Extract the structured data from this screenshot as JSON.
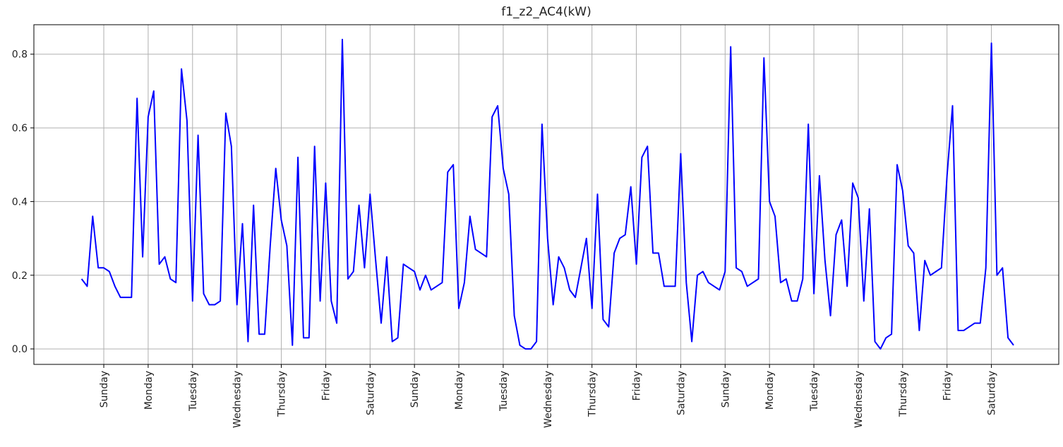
{
  "chart_data": {
    "type": "line",
    "title": "f1_z2_AC4(kW)",
    "categories": [
      null,
      null,
      null,
      null,
      "Sunday",
      null,
      null,
      null,
      null,
      null,
      null,
      null,
      "Monday",
      null,
      null,
      null,
      null,
      null,
      null,
      null,
      "Tuesday",
      null,
      null,
      null,
      null,
      null,
      null,
      null,
      "Wednesday",
      null,
      null,
      null,
      null,
      null,
      null,
      null,
      "Thursday",
      null,
      null,
      null,
      null,
      null,
      null,
      null,
      "Friday",
      null,
      null,
      null,
      null,
      null,
      null,
      null,
      "Saturday",
      null,
      null,
      null,
      null,
      null,
      null,
      null,
      "Sunday",
      null,
      null,
      null,
      null,
      null,
      null,
      null,
      "Monday",
      null,
      null,
      null,
      null,
      null,
      null,
      null,
      "Tuesday",
      null,
      null,
      null,
      null,
      null,
      null,
      null,
      "Wednesday",
      null,
      null,
      null,
      null,
      null,
      null,
      null,
      "Thursday",
      null,
      null,
      null,
      null,
      null,
      null,
      null,
      "Friday",
      null,
      null,
      null,
      null,
      null,
      null,
      null,
      "Saturday",
      null,
      null,
      null,
      null,
      null,
      null,
      null,
      "Sunday",
      null,
      null,
      null,
      null,
      null,
      null,
      null,
      "Monday",
      null,
      null,
      null,
      null,
      null,
      null,
      null,
      "Tuesday",
      null,
      null,
      null,
      null,
      null,
      null,
      null,
      "Wednesday",
      null,
      null,
      null,
      null,
      null,
      null,
      null,
      "Thursday",
      null,
      null,
      null,
      null,
      null,
      null,
      null,
      "Friday",
      null,
      null,
      null,
      null,
      null,
      null,
      null,
      "Saturday",
      null,
      null,
      null,
      null
    ],
    "values": [
      0.19,
      0.17,
      0.36,
      0.22,
      0.22,
      0.21,
      0.17,
      0.14,
      0.14,
      0.14,
      0.68,
      0.25,
      0.63,
      0.7,
      0.23,
      0.25,
      0.19,
      0.18,
      0.76,
      0.62,
      0.13,
      0.58,
      0.15,
      0.12,
      0.12,
      0.13,
      0.64,
      0.55,
      0.12,
      0.34,
      0.02,
      0.39,
      0.04,
      0.04,
      0.28,
      0.49,
      0.35,
      0.28,
      0.01,
      0.52,
      0.03,
      0.03,
      0.55,
      0.13,
      0.45,
      0.13,
      0.07,
      0.84,
      0.19,
      0.21,
      0.39,
      0.22,
      0.42,
      0.24,
      0.07,
      0.25,
      0.02,
      0.03,
      0.23,
      0.22,
      0.21,
      0.16,
      0.2,
      0.16,
      0.17,
      0.18,
      0.48,
      0.5,
      0.11,
      0.18,
      0.36,
      0.27,
      0.26,
      0.25,
      0.63,
      0.66,
      0.49,
      0.42,
      0.09,
      0.01,
      0.0,
      0.0,
      0.02,
      0.61,
      0.3,
      0.12,
      0.25,
      0.22,
      0.16,
      0.14,
      0.22,
      0.3,
      0.11,
      0.42,
      0.08,
      0.06,
      0.26,
      0.3,
      0.31,
      0.44,
      0.23,
      0.52,
      0.55,
      0.26,
      0.26,
      0.17,
      0.17,
      0.17,
      0.53,
      0.18,
      0.02,
      0.2,
      0.21,
      0.18,
      0.17,
      0.16,
      0.21,
      0.82,
      0.22,
      0.21,
      0.17,
      0.18,
      0.19,
      0.79,
      0.4,
      0.36,
      0.18,
      0.19,
      0.13,
      0.13,
      0.19,
      0.61,
      0.15,
      0.47,
      0.24,
      0.09,
      0.31,
      0.35,
      0.17,
      0.45,
      0.41,
      0.13,
      0.38,
      0.02,
      0.0,
      0.03,
      0.04,
      0.5,
      0.43,
      0.28,
      0.26,
      0.05,
      0.24,
      0.2,
      0.21,
      0.22,
      0.47,
      0.66,
      0.05,
      0.05,
      0.06,
      0.07,
      0.07,
      0.22,
      0.83,
      0.2,
      0.22,
      0.03,
      0.01
    ],
    "color": "#0000ff",
    "ylim": [
      -0.042,
      0.88
    ],
    "yticks": [
      {
        "value": 0,
        "label": "0.0"
      },
      0.2,
      0.4,
      0.6,
      0.8
    ],
    "grid": true
  }
}
